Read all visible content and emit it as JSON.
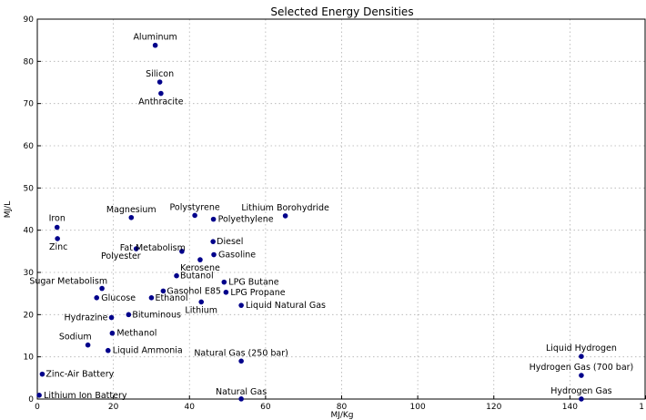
{
  "chart_data": {
    "type": "scatter",
    "title": "Selected Energy Densities",
    "xlabel": "MJ/Kg",
    "ylabel": "MJ/L",
    "xlim": [
      0,
      160
    ],
    "ylim": [
      0,
      90
    ],
    "x_ticks": [
      "0",
      "20",
      "40",
      "60",
      "80",
      "100",
      "120",
      "140",
      "1"
    ],
    "y_ticks": [
      "0",
      "10",
      "20",
      "30",
      "40",
      "50",
      "60",
      "70",
      "80",
      "90"
    ],
    "grid": true,
    "color": "#00008b",
    "points": [
      {
        "label": "Aluminum",
        "x": 31.0,
        "y": 83.8
      },
      {
        "label": "Silicon",
        "x": 32.2,
        "y": 75.1
      },
      {
        "label": "Anthracite",
        "x": 32.5,
        "y": 72.4
      },
      {
        "label": "Magnesium",
        "x": 24.7,
        "y": 43.0
      },
      {
        "label": "Polystyrene",
        "x": 41.4,
        "y": 43.5
      },
      {
        "label": "Polyethylene",
        "x": 46.3,
        "y": 42.6
      },
      {
        "label": "Lithium Borohydride",
        "x": 65.2,
        "y": 43.4
      },
      {
        "label": "Iron",
        "x": 5.2,
        "y": 40.68
      },
      {
        "label": "Zinc",
        "x": 5.3,
        "y": 38.0
      },
      {
        "label": "Polyester",
        "x": 26.0,
        "y": 35.6
      },
      {
        "label": "Fat Metabolism",
        "x": 38.0,
        "y": 35.0
      },
      {
        "label": "Diesel",
        "x": 46.2,
        "y": 37.3
      },
      {
        "label": "Kerosene",
        "x": 42.8,
        "y": 33.0
      },
      {
        "label": "Gasoline",
        "x": 46.4,
        "y": 34.2
      },
      {
        "label": "Butanol",
        "x": 36.6,
        "y": 29.2
      },
      {
        "label": "Sugar Metabolism",
        "x": 17.0,
        "y": 26.2
      },
      {
        "label": "LPG Butane",
        "x": 49.1,
        "y": 27.7
      },
      {
        "label": "Gasohol E85",
        "x": 33.1,
        "y": 25.6
      },
      {
        "label": "LPG Propane",
        "x": 49.6,
        "y": 25.3
      },
      {
        "label": "Glucose",
        "x": 15.6,
        "y": 24.0
      },
      {
        "label": "Ethanol",
        "x": 30.0,
        "y": 24.0
      },
      {
        "label": "Lithium",
        "x": 43.1,
        "y": 23.0
      },
      {
        "label": "Liquid Natural Gas",
        "x": 53.6,
        "y": 22.2
      },
      {
        "label": "Hydrazine",
        "x": 19.5,
        "y": 19.3
      },
      {
        "label": "Bituminous",
        "x": 24.0,
        "y": 20.0
      },
      {
        "label": "Methanol",
        "x": 19.7,
        "y": 15.6
      },
      {
        "label": "Sodium",
        "x": 13.3,
        "y": 12.8
      },
      {
        "label": "Liquid Ammonia",
        "x": 18.6,
        "y": 11.5
      },
      {
        "label": "Natural Gas (250 bar)",
        "x": 53.6,
        "y": 9.0
      },
      {
        "label": "Zinc-Air Battery",
        "x": 1.3,
        "y": 5.9
      },
      {
        "label": "Lithium Ion Battery",
        "x": 0.5,
        "y": 0.9
      },
      {
        "label": "Natural Gas",
        "x": 53.6,
        "y": 0.036
      },
      {
        "label": "Liquid Hydrogen",
        "x": 143.0,
        "y": 10.1
      },
      {
        "label": "Hydrogen Gas (700 bar)",
        "x": 143.0,
        "y": 5.6
      },
      {
        "label": "Hydrogen Gas",
        "x": 143.0,
        "y": 0.01
      }
    ]
  }
}
